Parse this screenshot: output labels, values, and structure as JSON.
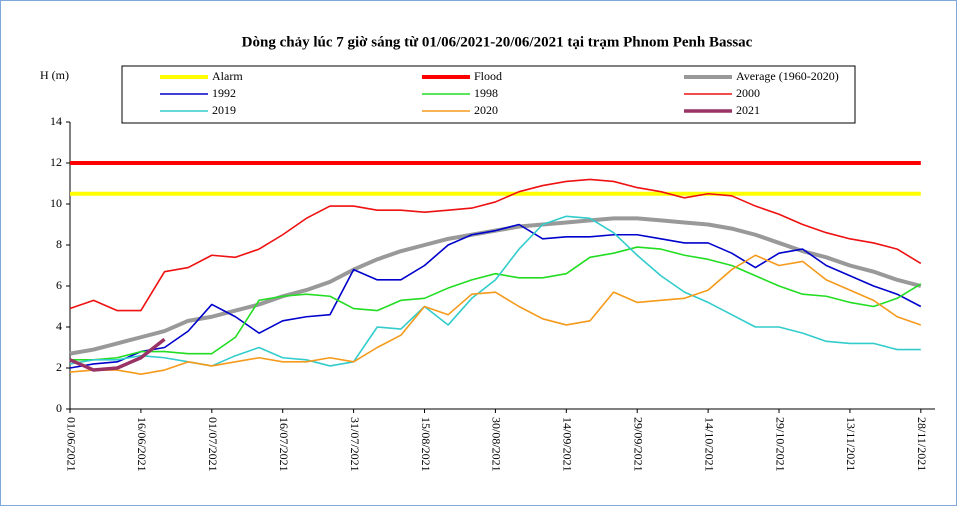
{
  "chart_data": {
    "type": "line",
    "title": "Dòng chảy lúc 7 giờ sáng từ 01/06/2021-20/06/2021 tại trạm Phnom Penh Bassac",
    "y_label": "H (m)",
    "x": [
      "01/06/2021",
      "06/06/2021",
      "11/06/2021",
      "16/06/2021",
      "21/06/2021",
      "26/06/2021",
      "01/07/2021",
      "06/07/2021",
      "11/07/2021",
      "16/07/2021",
      "21/07/2021",
      "26/07/2021",
      "31/07/2021",
      "05/08/2021",
      "10/08/2021",
      "15/08/2021",
      "20/08/2021",
      "25/08/2021",
      "30/08/2021",
      "04/09/2021",
      "09/09/2021",
      "14/09/2021",
      "19/09/2021",
      "24/09/2021",
      "29/09/2021",
      "04/10/2021",
      "09/10/2021",
      "14/10/2021",
      "19/10/2021",
      "24/10/2021",
      "29/10/2021",
      "03/11/2021",
      "08/11/2021",
      "13/11/2021",
      "18/11/2021",
      "23/11/2021",
      "28/11/2021"
    ],
    "xlim": [
      "01/06/2021",
      "01/12/2021"
    ],
    "xticks": [
      "01/06/2021",
      "16/06/2021",
      "01/07/2021",
      "16/07/2021",
      "31/07/2021",
      "15/08/2021",
      "30/08/2021",
      "14/09/2021",
      "29/09/2021",
      "14/10/2021",
      "29/10/2021",
      "13/11/2021",
      "28/11/2021"
    ],
    "ylim": [
      0,
      14
    ],
    "yticks": [
      0,
      2,
      4,
      6,
      8,
      10,
      12,
      14
    ],
    "grid": false,
    "series": [
      {
        "name": "Alarm",
        "color": "#ffff00",
        "line_width": 4,
        "values": [
          10.5,
          10.5,
          10.5,
          10.5,
          10.5,
          10.5,
          10.5,
          10.5,
          10.5,
          10.5,
          10.5,
          10.5,
          10.5,
          10.5,
          10.5,
          10.5,
          10.5,
          10.5,
          10.5,
          10.5,
          10.5,
          10.5,
          10.5,
          10.5,
          10.5,
          10.5,
          10.5,
          10.5,
          10.5,
          10.5,
          10.5,
          10.5,
          10.5,
          10.5,
          10.5,
          10.5,
          10.5
        ]
      },
      {
        "name": "Flood",
        "color": "#ff0000",
        "line_width": 4,
        "values": [
          12,
          12,
          12,
          12,
          12,
          12,
          12,
          12,
          12,
          12,
          12,
          12,
          12,
          12,
          12,
          12,
          12,
          12,
          12,
          12,
          12,
          12,
          12,
          12,
          12,
          12,
          12,
          12,
          12,
          12,
          12,
          12,
          12,
          12,
          12,
          12,
          12
        ]
      },
      {
        "name": "Average (1960-2020)",
        "color": "#999999",
        "line_width": 4,
        "values": [
          2.7,
          2.9,
          3.2,
          3.5,
          3.8,
          4.3,
          4.5,
          4.8,
          5.1,
          5.5,
          5.8,
          6.2,
          6.8,
          7.3,
          7.7,
          8.0,
          8.3,
          8.5,
          8.7,
          8.9,
          9.0,
          9.1,
          9.2,
          9.3,
          9.3,
          9.2,
          9.1,
          9.0,
          8.8,
          8.5,
          8.1,
          7.7,
          7.4,
          7.0,
          6.7,
          6.3,
          6.0
        ]
      },
      {
        "name": "1992",
        "color": "#0000cc",
        "line_width": 1.6,
        "values": [
          2.0,
          2.2,
          2.3,
          2.8,
          3.0,
          3.8,
          5.1,
          4.5,
          3.7,
          4.3,
          4.5,
          4.6,
          6.8,
          6.3,
          6.3,
          7.0,
          8.0,
          8.5,
          8.7,
          9.0,
          8.3,
          8.4,
          8.4,
          8.5,
          8.5,
          8.3,
          8.1,
          8.1,
          7.6,
          6.9,
          7.6,
          7.8,
          7.0,
          6.5,
          6.0,
          5.6,
          5.0
        ]
      },
      {
        "name": "1998",
        "color": "#22dd22",
        "line_width": 1.6,
        "values": [
          2.4,
          2.4,
          2.5,
          2.8,
          2.8,
          2.7,
          2.7,
          3.5,
          5.3,
          5.5,
          5.6,
          5.5,
          4.9,
          4.8,
          5.3,
          5.4,
          5.9,
          6.3,
          6.6,
          6.4,
          6.4,
          6.6,
          7.4,
          7.6,
          7.9,
          7.8,
          7.5,
          7.3,
          7.0,
          6.5,
          6.0,
          5.6,
          5.5,
          5.2,
          5.0,
          5.4,
          6.1
        ]
      },
      {
        "name": "2000",
        "color": "#ee1111",
        "line_width": 1.6,
        "values": [
          4.9,
          5.3,
          4.8,
          4.8,
          6.7,
          6.9,
          7.5,
          7.4,
          7.8,
          8.5,
          9.3,
          9.9,
          9.9,
          9.7,
          9.7,
          9.6,
          9.7,
          9.8,
          10.1,
          10.6,
          10.9,
          11.1,
          11.2,
          11.1,
          10.8,
          10.6,
          10.3,
          10.5,
          10.4,
          9.9,
          9.5,
          9.0,
          8.6,
          8.3,
          8.1,
          7.8,
          7.1
        ]
      },
      {
        "name": "2019",
        "color": "#33cccc",
        "line_width": 1.6,
        "values": [
          2.2,
          2.4,
          2.4,
          2.6,
          2.5,
          2.3,
          2.1,
          2.6,
          3.0,
          2.5,
          2.4,
          2.1,
          2.3,
          4.0,
          3.9,
          5.0,
          4.1,
          5.4,
          6.3,
          7.8,
          9.0,
          9.4,
          9.3,
          8.6,
          7.5,
          6.5,
          5.7,
          5.2,
          4.6,
          4.0,
          4.0,
          3.7,
          3.3,
          3.2,
          3.2,
          2.9,
          2.9
        ]
      },
      {
        "name": "2020",
        "color": "#f59a1b",
        "line_width": 1.6,
        "values": [
          1.8,
          1.9,
          1.9,
          1.7,
          1.9,
          2.3,
          2.1,
          2.3,
          2.5,
          2.3,
          2.3,
          2.5,
          2.3,
          3.0,
          3.6,
          5.0,
          4.6,
          5.6,
          5.7,
          5.0,
          4.4,
          4.1,
          4.3,
          5.7,
          5.2,
          5.3,
          5.4,
          5.8,
          6.8,
          7.5,
          7.0,
          7.2,
          6.3,
          5.8,
          5.3,
          4.5,
          4.1
        ]
      },
      {
        "name": "2021",
        "color": "#993366",
        "line_width": 3.5,
        "values": [
          2.4,
          1.9,
          2.0,
          2.5,
          3.4,
          null,
          null,
          null,
          null,
          null,
          null,
          null,
          null,
          null,
          null,
          null,
          null,
          null,
          null,
          null,
          null,
          null,
          null,
          null,
          null,
          null,
          null,
          null,
          null,
          null,
          null,
          null,
          null,
          null,
          null,
          null,
          null
        ]
      }
    ]
  }
}
